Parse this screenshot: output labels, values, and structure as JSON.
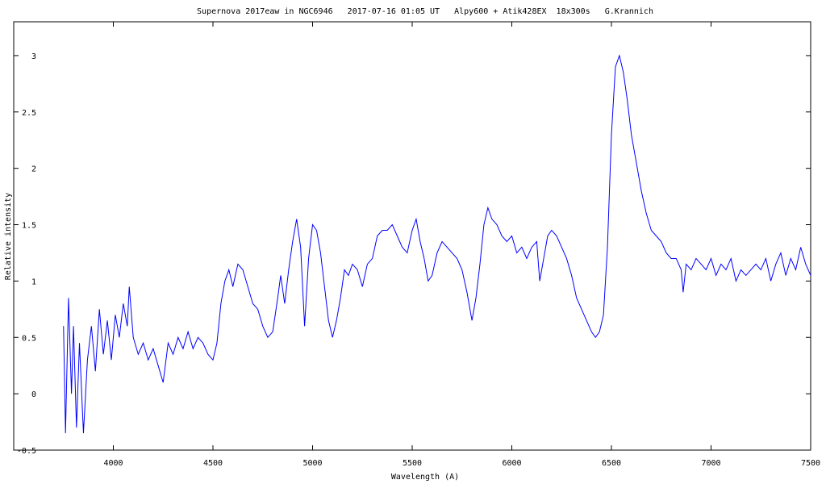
{
  "chart_data": {
    "type": "line",
    "title": "Supernova 2017eaw in NGC6946   2017-07-16 01:05 UT   Alpy600 + Atik428EX  18x300s   G.Krannich",
    "x_label": "Wavelength (A)",
    "y_label": "Relative intensity",
    "xlim": [
      3500,
      7500
    ],
    "xticks": [
      4000,
      4500,
      5000,
      5500,
      6000,
      6500,
      7000,
      7500
    ],
    "ylim": [
      -0.5,
      3.3
    ],
    "yticks": [
      -0.5,
      0,
      0.5,
      1,
      1.5,
      2,
      2.5,
      3
    ],
    "grid": false,
    "series": [
      {
        "color": "#0000ff",
        "x": [
          3750,
          3760,
          3775,
          3790,
          3800,
          3815,
          3830,
          3850,
          3870,
          3890,
          3910,
          3930,
          3950,
          3970,
          3990,
          4010,
          4030,
          4050,
          4070,
          4080,
          4100,
          4125,
          4150,
          4175,
          4200,
          4225,
          4250,
          4275,
          4300,
          4325,
          4350,
          4375,
          4400,
          4425,
          4450,
          4475,
          4500,
          4520,
          4540,
          4560,
          4580,
          4600,
          4625,
          4650,
          4675,
          4700,
          4725,
          4750,
          4775,
          4800,
          4825,
          4840,
          4860,
          4880,
          4900,
          4920,
          4940,
          4960,
          4980,
          5000,
          5020,
          5040,
          5060,
          5080,
          5100,
          5120,
          5140,
          5160,
          5180,
          5200,
          5225,
          5250,
          5275,
          5300,
          5325,
          5350,
          5375,
          5400,
          5425,
          5450,
          5475,
          5500,
          5520,
          5540,
          5560,
          5580,
          5600,
          5625,
          5650,
          5675,
          5700,
          5725,
          5750,
          5775,
          5800,
          5820,
          5840,
          5860,
          5880,
          5900,
          5925,
          5950,
          5975,
          6000,
          6025,
          6050,
          6075,
          6100,
          6125,
          6140,
          6160,
          6180,
          6200,
          6225,
          6250,
          6275,
          6300,
          6325,
          6350,
          6375,
          6400,
          6420,
          6440,
          6460,
          6480,
          6500,
          6520,
          6540,
          6560,
          6580,
          6600,
          6625,
          6650,
          6675,
          6700,
          6725,
          6750,
          6775,
          6800,
          6825,
          6850,
          6860,
          6875,
          6900,
          6925,
          6950,
          6975,
          7000,
          7025,
          7050,
          7075,
          7100,
          7125,
          7150,
          7175,
          7200,
          7225,
          7250,
          7275,
          7300,
          7325,
          7350,
          7375,
          7400,
          7425,
          7450,
          7475,
          7500
        ],
        "values": [
          0.6,
          -0.35,
          0.85,
          0.0,
          0.6,
          -0.3,
          0.45,
          -0.35,
          0.3,
          0.6,
          0.2,
          0.75,
          0.35,
          0.65,
          0.3,
          0.7,
          0.5,
          0.8,
          0.6,
          0.95,
          0.5,
          0.35,
          0.45,
          0.3,
          0.4,
          0.25,
          0.1,
          0.45,
          0.35,
          0.5,
          0.4,
          0.55,
          0.4,
          0.5,
          0.45,
          0.35,
          0.3,
          0.45,
          0.8,
          1.0,
          1.1,
          0.95,
          1.15,
          1.1,
          0.95,
          0.8,
          0.75,
          0.6,
          0.5,
          0.55,
          0.85,
          1.05,
          0.8,
          1.1,
          1.35,
          1.55,
          1.3,
          0.6,
          1.2,
          1.5,
          1.45,
          1.25,
          0.95,
          0.65,
          0.5,
          0.65,
          0.85,
          1.1,
          1.05,
          1.15,
          1.1,
          0.95,
          1.15,
          1.2,
          1.4,
          1.45,
          1.45,
          1.5,
          1.4,
          1.3,
          1.25,
          1.45,
          1.55,
          1.35,
          1.2,
          1.0,
          1.05,
          1.25,
          1.35,
          1.3,
          1.25,
          1.2,
          1.1,
          0.9,
          0.65,
          0.85,
          1.15,
          1.5,
          1.65,
          1.55,
          1.5,
          1.4,
          1.35,
          1.4,
          1.25,
          1.3,
          1.2,
          1.3,
          1.35,
          1.0,
          1.2,
          1.4,
          1.45,
          1.4,
          1.3,
          1.2,
          1.05,
          0.85,
          0.75,
          0.65,
          0.55,
          0.5,
          0.55,
          0.7,
          1.3,
          2.3,
          2.9,
          3.0,
          2.85,
          2.6,
          2.3,
          2.05,
          1.8,
          1.6,
          1.45,
          1.4,
          1.35,
          1.25,
          1.2,
          1.2,
          1.1,
          0.9,
          1.15,
          1.1,
          1.2,
          1.15,
          1.1,
          1.2,
          1.05,
          1.15,
          1.1,
          1.2,
          1.0,
          1.1,
          1.05,
          1.1,
          1.15,
          1.1,
          1.2,
          1.0,
          1.15,
          1.25,
          1.05,
          1.2,
          1.1,
          1.3,
          1.15,
          1.05
        ]
      }
    ]
  }
}
